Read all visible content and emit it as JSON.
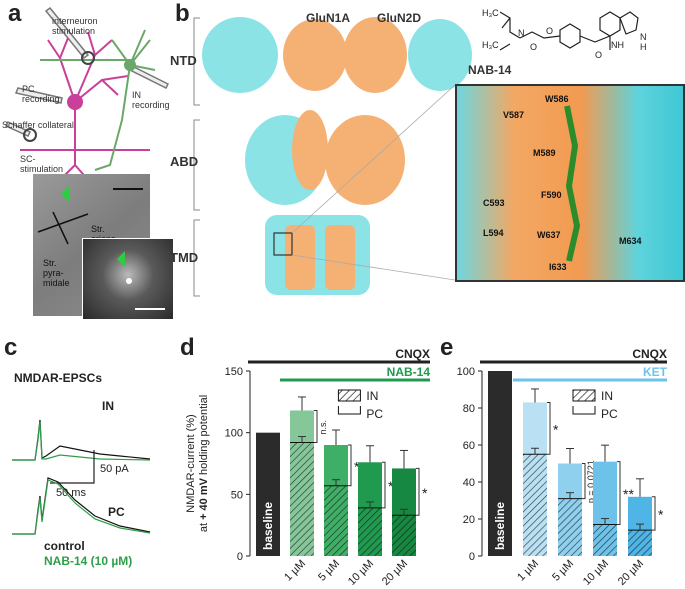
{
  "panels": {
    "a": {
      "label": "a",
      "interneuron_stim": "interneuron\nstimulation",
      "pc_recording": "PC\nrecording",
      "in_recording": "IN\nrecording",
      "schaffer": "Schaffer collateral",
      "sc_stim": "SC-\nstimulation",
      "str_oriens": "Str.\noriens",
      "str_pyramidale": "Str.\npyra-\nmidale"
    },
    "b": {
      "label": "b",
      "glun1a": "GluN1A",
      "glun2d": "GluN2D",
      "ntd": "NTD",
      "abd": "ABD",
      "tmd": "TMD",
      "nab14": "NAB-14",
      "residues": [
        "W586",
        "V587",
        "M589",
        "F590",
        "C593",
        "L594",
        "W637",
        "M634",
        "I633"
      ]
    },
    "c": {
      "label": "c",
      "title": "NMDAR-EPSCs",
      "in_label": "IN",
      "pc_label": "PC",
      "scale_y": "50 pA",
      "scale_x": "50 ms",
      "legend_control": "control",
      "legend_drug": "NAB-14 (10 µM)"
    },
    "d": {
      "label": "d",
      "cnqx": "CNQX",
      "drug": "NAB-14",
      "legend_in": "IN",
      "legend_pc": "PC",
      "ylabel": "NMDAR-current (%)",
      "ylabel2_pre": "at ",
      "ylabel2_bold": "+ 40 mV",
      "ylabel2_post": " holding potential",
      "baseline": "baseline",
      "ns": "n.s.",
      "star": "*"
    },
    "e": {
      "label": "e",
      "cnqx": "CNQX",
      "drug": "KET",
      "legend_in": "IN",
      "legend_pc": "PC",
      "baseline": "baseline",
      "pval": "p = 0.0721",
      "star": "*",
      "dstar": "**"
    }
  },
  "chart_data": [
    {
      "panel": "d",
      "type": "bar",
      "categories": [
        "baseline",
        "1 µM",
        "5 µM",
        "10 µM",
        "20 µM"
      ],
      "series": [
        {
          "name": "IN",
          "values": [
            100,
            118,
            90,
            76,
            71
          ]
        },
        {
          "name": "PC",
          "values": [
            100,
            92,
            57,
            39,
            33
          ]
        }
      ],
      "ylim": [
        0,
        150
      ],
      "yticks": [
        0,
        50,
        100,
        150
      ],
      "ylabel": "NMDAR-current (%) at + 40 mV holding potential",
      "colors": {
        "baseline": "#2b2b2b",
        "c1": "#86c79a",
        "c2": "#3fae66",
        "c3": "#1f9a4f",
        "c4": "#178841"
      }
    },
    {
      "panel": "e",
      "type": "bar",
      "categories": [
        "baseline",
        "1 µM",
        "5 µM",
        "10 µM",
        "20 µM"
      ],
      "series": [
        {
          "name": "IN",
          "values": [
            100,
            83,
            50,
            51,
            32
          ]
        },
        {
          "name": "PC",
          "values": [
            100,
            55,
            31,
            17,
            14
          ]
        }
      ],
      "ylim": [
        0,
        100
      ],
      "yticks": [
        0,
        20,
        40,
        60,
        80,
        100
      ],
      "colors": {
        "baseline": "#2b2b2b",
        "c1": "#b9e1f3",
        "c2": "#8ed0ee",
        "c3": "#6dc2ea",
        "c4": "#4fb4e6"
      }
    }
  ]
}
